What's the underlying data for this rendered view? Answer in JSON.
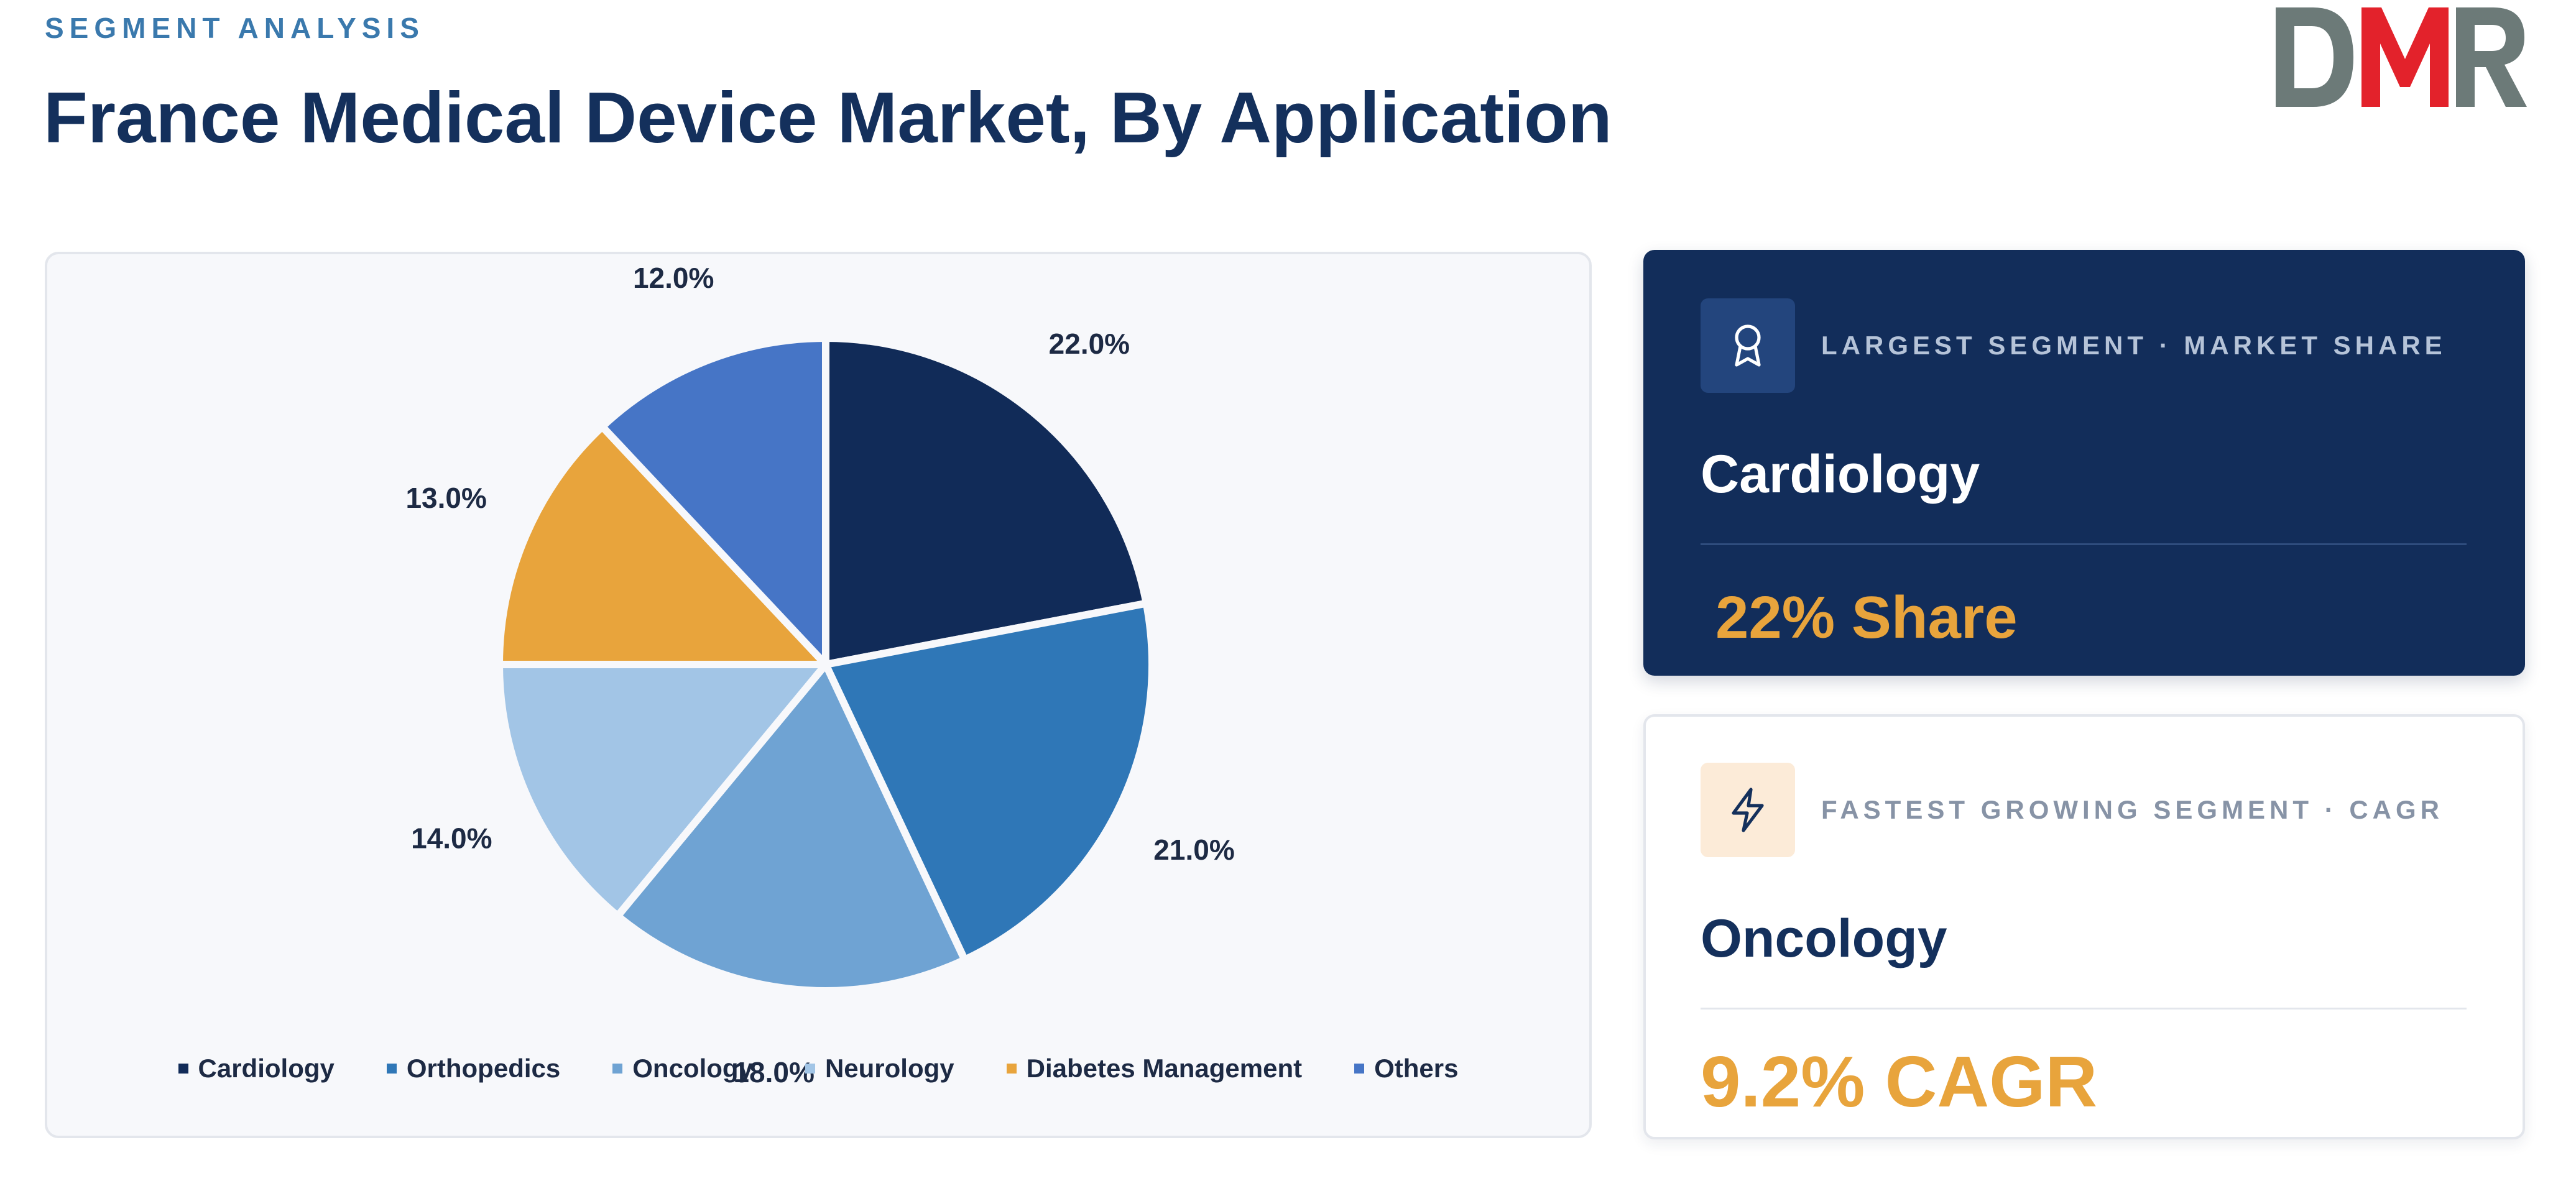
{
  "header": {
    "eyebrow": "SEGMENT ANALYSIS",
    "title": "France Medical Device Market, By Application",
    "logo_text": "DMR"
  },
  "chart_data": {
    "type": "pie",
    "title": "",
    "categories": [
      "Cardiology",
      "Orthopedics",
      "Oncology",
      "Neurology",
      "Diabetes Management",
      "Others"
    ],
    "values": [
      22.0,
      21.0,
      18.0,
      14.0,
      13.0,
      12.0
    ],
    "labels": [
      "22.0%",
      "21.0%",
      "18.0%",
      "14.0%",
      "13.0%",
      "12.0%"
    ],
    "colors": [
      "#112b58",
      "#2f77b7",
      "#6fa3d3",
      "#a2c5e6",
      "#e8a43c",
      "#4675c6"
    ],
    "start": "12 o'clock",
    "direction": "clockwise",
    "legend_position": "bottom"
  },
  "cards": {
    "largest": {
      "kicker": "LARGEST SEGMENT   ·   MARKET SHARE",
      "segment": "Cardiology",
      "metric": "22% Share",
      "icon": "award-icon"
    },
    "fastest": {
      "kicker": "FASTEST GROWING SEGMENT   ·   CAGR",
      "segment": "Oncology",
      "metric": "9.2% CAGR",
      "icon": "lightning-icon"
    }
  }
}
